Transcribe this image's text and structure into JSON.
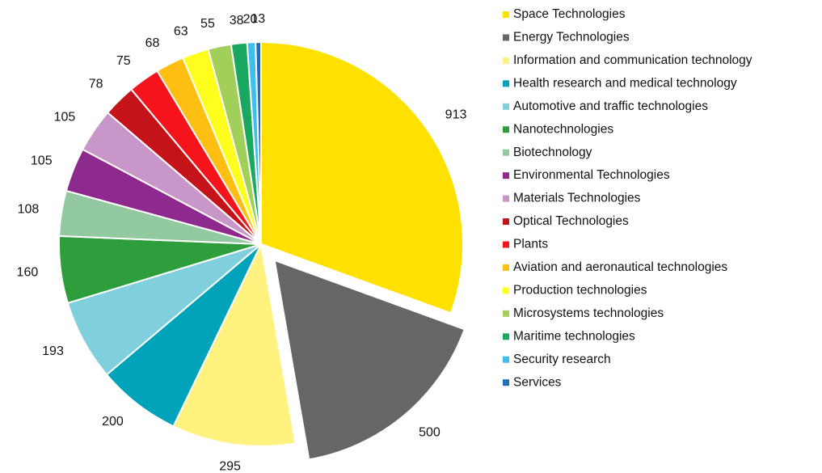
{
  "chart_data": {
    "type": "pie",
    "categories": [
      "Space Technologies",
      "Energy Technologies",
      "Information and communication technology",
      "Health research and medical technology",
      "Automotive and traffic technologies",
      "Nanotechnologies",
      "Biotechnology",
      "Environmental Technologies",
      "Materials Technologies",
      "Optical Technologies",
      "Plants",
      "Aviation and aeronautical technologies",
      "Production technologies",
      "Microsystems technologies",
      "Maritime technologies",
      "Security research",
      "Services"
    ],
    "values": [
      913,
      500,
      295,
      200,
      193,
      160,
      108,
      105,
      105,
      78,
      75,
      68,
      63,
      55,
      38,
      20,
      13
    ],
    "colors": [
      "#ffe100",
      "#666666",
      "#fff27f",
      "#00a3ba",
      "#7fcfdd",
      "#2e9e3c",
      "#92c9a0",
      "#8e2a8e",
      "#c996ca",
      "#c4141a",
      "#f5141c",
      "#ffbf12",
      "#ffff1e",
      "#a2cf5a",
      "#1aa860",
      "#3fbfee",
      "#1f6fb8"
    ],
    "legend": "right"
  }
}
